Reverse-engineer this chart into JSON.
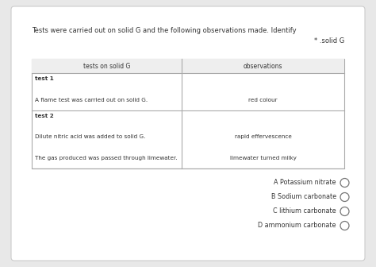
{
  "background_outer": "#e8e8e8",
  "background_card": "#ffffff",
  "title_line1": "Tests were carried out on solid G and the following observations made. Identify",
  "title_line2": "* .solid G",
  "table_header_left": "tests on solid G",
  "table_header_right": "observations",
  "table_rows": [
    {
      "left": "test 1",
      "right": "",
      "bold_left": true,
      "section_header": true
    },
    {
      "left": "A flame test was carried out on solid G.",
      "right": "red colour",
      "bold_left": false,
      "section_header": false
    },
    {
      "left": "test 2",
      "right": "",
      "bold_left": true,
      "section_header": true
    },
    {
      "left": "Dilute nitric acid was added to solid G.",
      "right": "rapid effervescence",
      "bold_left": false,
      "section_header": false
    },
    {
      "left": "The gas produced was passed through limewater.",
      "right": "limewater turned milky",
      "bold_left": false,
      "section_header": false
    }
  ],
  "options": [
    "A Potassium nitrate",
    "B Sodium carbonate",
    "C lithium carbonate",
    "D ammonium carbonate"
  ],
  "font_size_title": 6.0,
  "font_size_table_header": 5.5,
  "font_size_table_body": 5.2,
  "font_size_options": 5.8,
  "text_color": "#333333",
  "table_line_color": "#aaaaaa",
  "header_bg": "#eeeeee"
}
